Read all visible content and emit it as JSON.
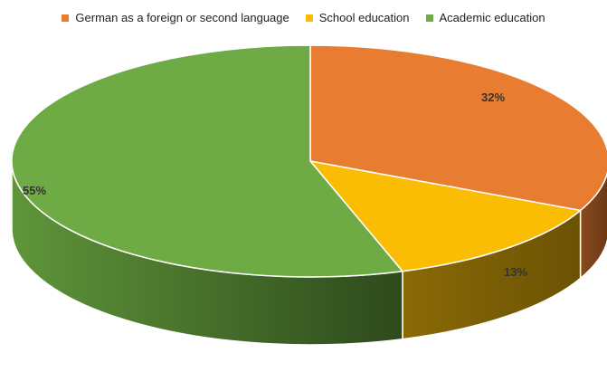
{
  "chart_data": {
    "type": "pie",
    "style": "3d",
    "categories": [
      "German as a foreign or second language",
      "School education",
      "Academic education"
    ],
    "values": [
      32,
      13,
      55
    ],
    "labels": [
      "32%",
      "13%",
      "55%"
    ],
    "colors": [
      "#E87D32",
      "#FBBC04",
      "#6EAB45"
    ],
    "legend_position": "top"
  }
}
